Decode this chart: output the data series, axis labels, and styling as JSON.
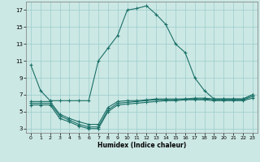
{
  "title": "",
  "xlabel": "Humidex (Indice chaleur)",
  "bg_color": "#cce8e4",
  "grid_color": "#99cccc",
  "line_color": "#1a7068",
  "xlim": [
    -0.5,
    23.5
  ],
  "ylim": [
    2.5,
    18.0
  ],
  "xticks": [
    0,
    1,
    2,
    3,
    4,
    5,
    6,
    7,
    8,
    9,
    10,
    11,
    12,
    13,
    14,
    15,
    16,
    17,
    18,
    19,
    20,
    21,
    22,
    23
  ],
  "yticks": [
    3,
    5,
    7,
    9,
    11,
    13,
    15,
    17
  ],
  "line1_x": [
    0,
    1,
    2,
    3,
    4,
    5,
    6,
    7,
    8,
    9,
    10,
    11,
    12,
    13,
    14,
    15,
    16,
    17,
    18,
    19,
    20,
    21,
    22,
    23
  ],
  "line1_y": [
    10.5,
    7.5,
    6.3,
    6.3,
    6.3,
    6.3,
    6.3,
    11.0,
    12.5,
    14.0,
    17.0,
    17.2,
    17.5,
    16.5,
    15.3,
    13.0,
    12.0,
    9.0,
    7.5,
    6.5,
    6.5,
    6.5,
    6.5,
    7.0
  ],
  "line2_x": [
    0,
    1,
    2,
    3,
    4,
    5,
    6,
    7,
    8,
    9,
    10,
    11,
    12,
    13,
    14,
    15,
    16,
    17,
    18,
    19,
    20,
    21,
    22,
    23
  ],
  "line2_y": [
    6.2,
    6.2,
    6.2,
    4.7,
    4.2,
    3.8,
    3.5,
    3.5,
    5.5,
    6.2,
    6.3,
    6.3,
    6.4,
    6.5,
    6.5,
    6.5,
    6.5,
    6.6,
    6.6,
    6.5,
    6.5,
    6.5,
    6.5,
    7.0
  ],
  "line3_x": [
    0,
    1,
    2,
    3,
    4,
    5,
    6,
    7,
    8,
    9,
    10,
    11,
    12,
    13,
    14,
    15,
    16,
    17,
    18,
    19,
    20,
    21,
    22,
    23
  ],
  "line3_y": [
    6.0,
    6.0,
    6.0,
    4.5,
    4.0,
    3.5,
    3.2,
    3.2,
    5.2,
    6.0,
    6.1,
    6.2,
    6.3,
    6.4,
    6.4,
    6.4,
    6.5,
    6.5,
    6.5,
    6.4,
    6.4,
    6.4,
    6.4,
    6.8
  ],
  "line4_x": [
    0,
    1,
    2,
    3,
    4,
    5,
    6,
    7,
    8,
    9,
    10,
    11,
    12,
    13,
    14,
    15,
    16,
    17,
    18,
    19,
    20,
    21,
    22,
    23
  ],
  "line4_y": [
    5.8,
    5.8,
    5.8,
    4.2,
    3.8,
    3.3,
    3.0,
    3.0,
    5.0,
    5.8,
    5.9,
    6.0,
    6.1,
    6.2,
    6.3,
    6.3,
    6.4,
    6.4,
    6.4,
    6.3,
    6.3,
    6.3,
    6.3,
    6.6
  ]
}
